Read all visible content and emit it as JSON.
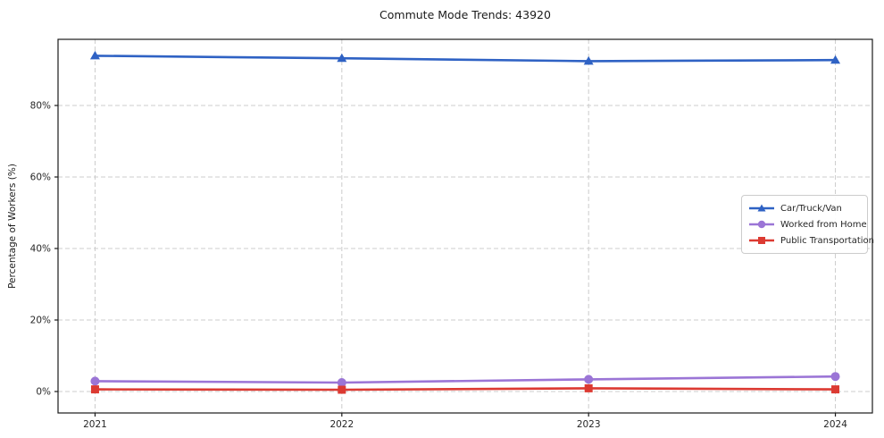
{
  "chart_data": {
    "type": "line",
    "title": "Commute Mode Trends: 43920",
    "xlabel": "",
    "ylabel": "Percentage of Workers (%)",
    "categories": [
      "2021",
      "2022",
      "2023",
      "2024"
    ],
    "series": [
      {
        "name": "Car/Truck/Van",
        "color": "#2f62c4",
        "marker": "triangle",
        "values": [
          93.9,
          93.2,
          92.4,
          92.7
        ]
      },
      {
        "name": "Worked from Home",
        "color": "#9b75d6",
        "marker": "circle",
        "values": [
          2.9,
          2.5,
          3.4,
          4.2
        ]
      },
      {
        "name": "Public Transportation",
        "color": "#dc3a32",
        "marker": "square",
        "values": [
          0.6,
          0.5,
          0.9,
          0.6
        ]
      }
    ],
    "yticks": {
      "values": [
        0,
        20,
        40,
        60,
        80
      ],
      "labels": [
        "0%",
        "20%",
        "40%",
        "60%",
        "80%"
      ]
    },
    "ylim": [
      -6,
      98.5
    ],
    "grid": {
      "on": true,
      "style": "dashed",
      "color": "#cccccc",
      "axes": "both"
    },
    "legend": {
      "position": "center-right",
      "border_color": "#cccccc"
    },
    "spine_color": "#1a1a1a",
    "tick_label_color": "#262626"
  }
}
